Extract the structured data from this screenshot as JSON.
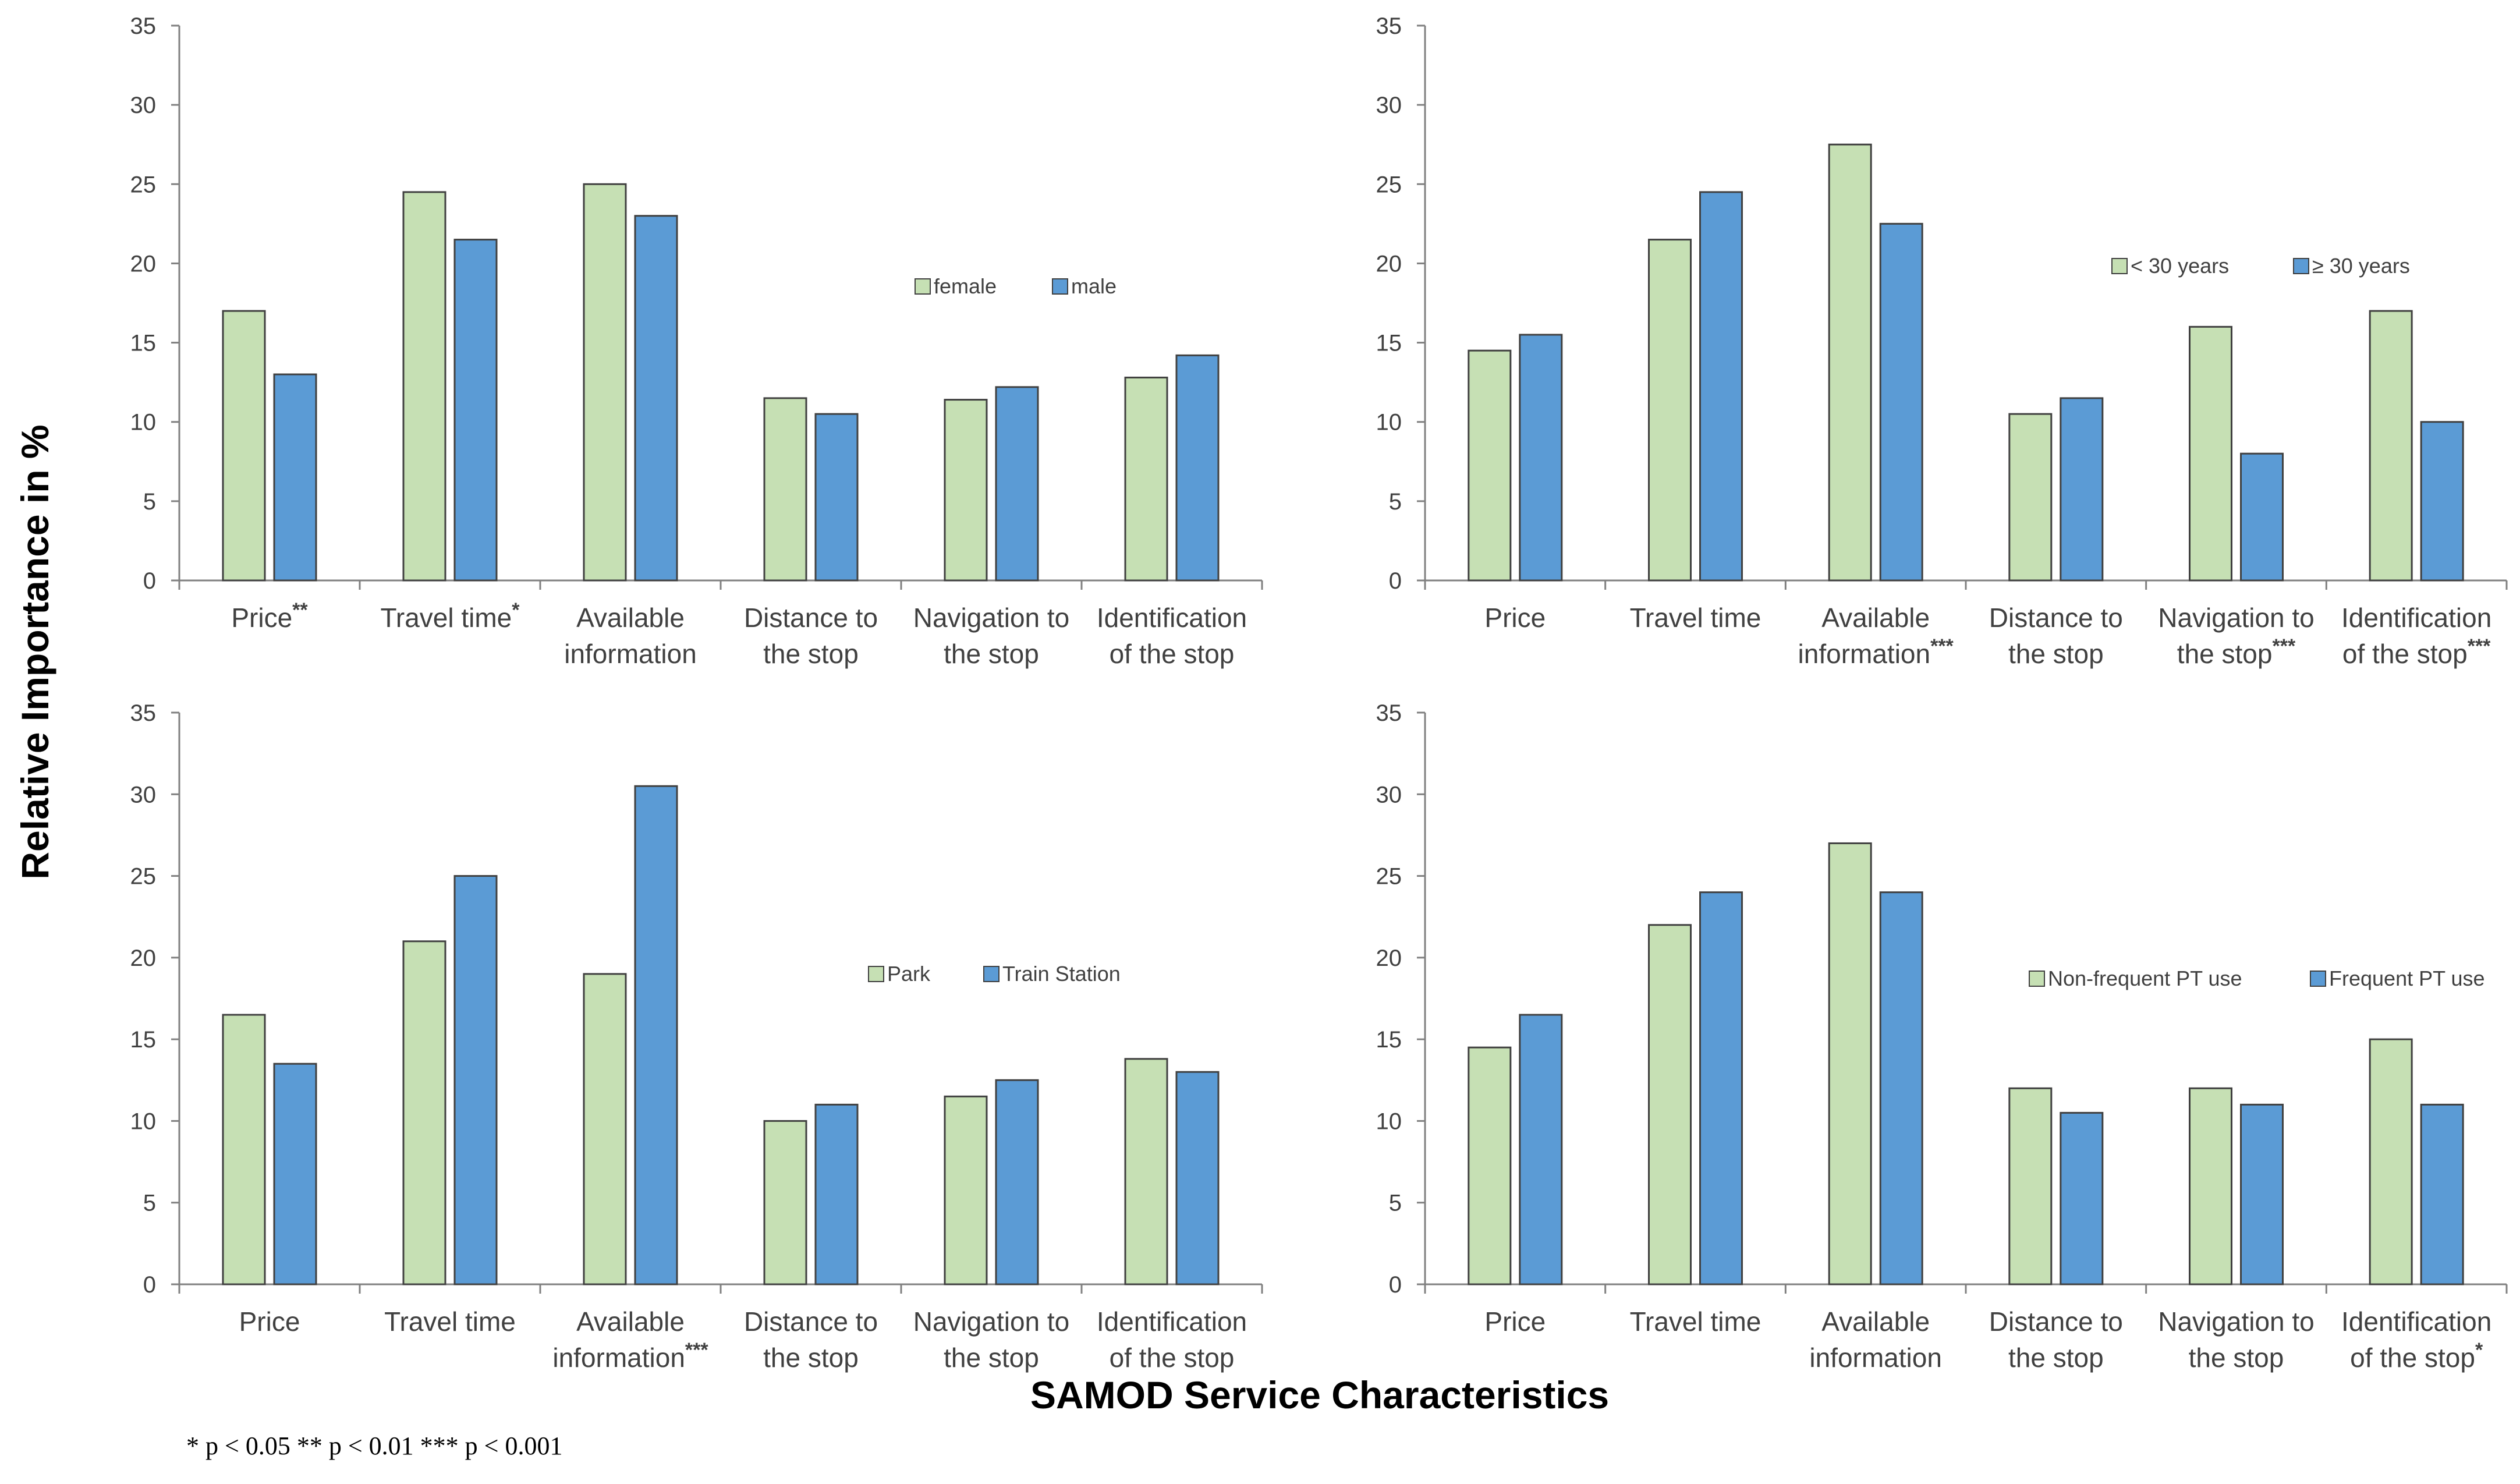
{
  "y_axis_label": "Relative Importance in %",
  "x_axis_label": "SAMOD Service Characteristics",
  "significance_note": "* p < 0.05     ** p < 0.01     *** p < 0.001",
  "colors": {
    "series1": "#c6e0b4",
    "series2": "#5b9bd5",
    "edge": "#404040"
  },
  "chart_data": [
    {
      "type": "bar",
      "panel": "top-left",
      "categories": [
        "Price",
        "Travel time",
        "Available information",
        "Distance to the stop",
        "Navigation to the stop",
        "Identification of the stop"
      ],
      "category_lines": [
        [
          "Price"
        ],
        [
          "Travel time"
        ],
        [
          "Available",
          "information"
        ],
        [
          "Distance to",
          "the stop"
        ],
        [
          "Navigation to",
          "the stop"
        ],
        [
          "Identification",
          "of the stop"
        ]
      ],
      "significance": [
        "**",
        "*",
        "",
        "",
        "",
        ""
      ],
      "series": [
        {
          "name": "female",
          "values": [
            17,
            24.5,
            25,
            11.5,
            11.4,
            12.8
          ]
        },
        {
          "name": "male",
          "values": [
            13,
            21.5,
            23,
            10.5,
            12.2,
            14.2
          ]
        }
      ],
      "ylim": [
        0,
        35
      ],
      "yticks": [
        0,
        5,
        10,
        15,
        20,
        25,
        30,
        35
      ],
      "legend_position": "center-right"
    },
    {
      "type": "bar",
      "panel": "top-right",
      "categories": [
        "Price",
        "Travel time",
        "Available information",
        "Distance to the stop",
        "Navigation to the stop",
        "Identification of the stop"
      ],
      "category_lines": [
        [
          "Price"
        ],
        [
          "Travel time"
        ],
        [
          "Available",
          "information"
        ],
        [
          "Distance to",
          "the stop"
        ],
        [
          "Navigation to",
          "the stop"
        ],
        [
          "Identification",
          "of the stop"
        ]
      ],
      "significance": [
        "",
        "",
        "***",
        "",
        "***",
        "***"
      ],
      "series": [
        {
          "name": "< 30 years",
          "values": [
            14.5,
            21.5,
            27.5,
            10.5,
            16,
            17
          ]
        },
        {
          "name": "≥ 30 years",
          "values": [
            15.5,
            24.5,
            22.5,
            11.5,
            8,
            10
          ]
        }
      ],
      "ylim": [
        0,
        35
      ],
      "yticks": [
        0,
        5,
        10,
        15,
        20,
        25,
        30,
        35
      ],
      "legend_position": "center-right"
    },
    {
      "type": "bar",
      "panel": "bottom-left",
      "categories": [
        "Price",
        "Travel time",
        "Available information",
        "Distance to the stop",
        "Navigation to the stop",
        "Identification of the stop"
      ],
      "category_lines": [
        [
          "Price"
        ],
        [
          "Travel time"
        ],
        [
          "Available",
          "information"
        ],
        [
          "Distance to",
          "the stop"
        ],
        [
          "Navigation to",
          "the stop"
        ],
        [
          "Identification",
          "of the stop"
        ]
      ],
      "significance": [
        "",
        "",
        "***",
        "",
        "",
        ""
      ],
      "series": [
        {
          "name": "Park",
          "values": [
            16.5,
            21,
            19,
            10,
            11.5,
            13.8
          ]
        },
        {
          "name": "Train Station",
          "values": [
            13.5,
            25,
            30.5,
            11,
            12.5,
            13
          ]
        }
      ],
      "ylim": [
        0,
        35
      ],
      "yticks": [
        0,
        5,
        10,
        15,
        20,
        25,
        30,
        35
      ],
      "legend_position": "center-right"
    },
    {
      "type": "bar",
      "panel": "bottom-right",
      "categories": [
        "Price",
        "Travel time",
        "Available information",
        "Distance to the stop",
        "Navigation to the stop",
        "Identification of the stop"
      ],
      "category_lines": [
        [
          "Price"
        ],
        [
          "Travel time"
        ],
        [
          "Available",
          "information"
        ],
        [
          "Distance to",
          "the stop"
        ],
        [
          "Navigation to",
          "the stop"
        ],
        [
          "Identification",
          "of the stop"
        ]
      ],
      "significance": [
        "",
        "",
        "",
        "",
        "",
        "*"
      ],
      "series": [
        {
          "name": "Non-frequent PT use",
          "values": [
            14.5,
            22,
            27,
            12,
            12,
            15
          ]
        },
        {
          "name": "Frequent PT use",
          "values": [
            16.5,
            24,
            24,
            10.5,
            11,
            11
          ]
        }
      ],
      "ylim": [
        0,
        35
      ],
      "yticks": [
        0,
        5,
        10,
        15,
        20,
        25,
        30,
        35
      ],
      "legend_position": "center-right"
    }
  ]
}
